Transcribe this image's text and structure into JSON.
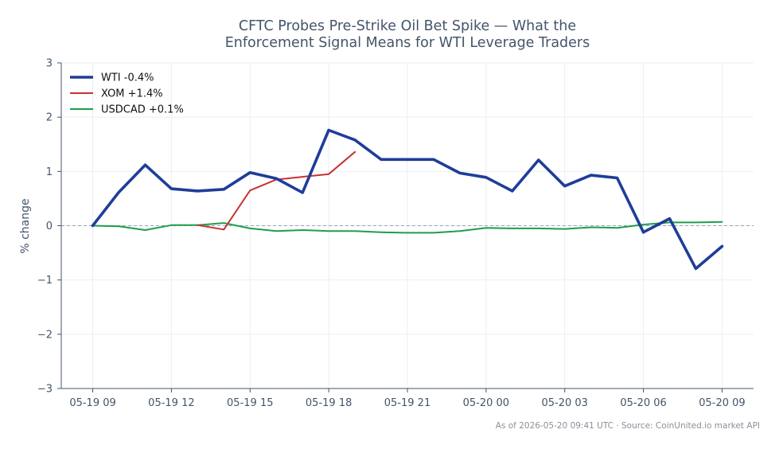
{
  "chart_data": {
    "type": "line",
    "title_lines": [
      "CFTC Probes Pre-Strike Oil Bet Spike — What the",
      "Enforcement Signal Means for WTI Leverage Traders"
    ],
    "ylabel": "% change",
    "xlabel": "",
    "ylim": [
      -3,
      3
    ],
    "y_ticks": [
      -3,
      -2,
      -1,
      0,
      1,
      2,
      3
    ],
    "y_tick_labels": [
      "−3",
      "−2",
      "−1",
      "0",
      "1",
      "2",
      "3"
    ],
    "x_range": [
      -1.2,
      25.2
    ],
    "x_ticks": [
      0,
      3,
      6,
      9,
      12,
      15,
      18,
      21,
      24
    ],
    "x_tick_labels": [
      "05-19 09",
      "05-19 12",
      "05-19 15",
      "05-19 18",
      "05-19 21",
      "05-20 00",
      "05-20 03",
      "05-20 06",
      "05-20 09"
    ],
    "grid": true,
    "zero_line": true,
    "legend_position": "top-left",
    "series": [
      {
        "name": "WTI -0.4%",
        "color": "#1f3d99",
        "x": [
          0,
          1,
          2,
          3,
          4,
          5,
          6,
          7,
          8,
          9,
          10,
          11,
          12,
          13,
          14,
          15,
          16,
          17,
          18,
          19,
          20,
          21,
          22,
          23,
          24
        ],
        "values": [
          0.0,
          0.62,
          1.12,
          0.68,
          0.64,
          0.67,
          0.98,
          0.87,
          0.61,
          1.76,
          1.58,
          1.22,
          1.22,
          1.22,
          0.97,
          0.89,
          0.64,
          1.21,
          0.73,
          0.93,
          0.88,
          -0.12,
          0.13,
          -0.79,
          -0.38
        ]
      },
      {
        "name": "XOM +1.4%",
        "color": "#c83232",
        "x": [
          4,
          5,
          6,
          7,
          8,
          9,
          10
        ],
        "values": [
          0.01,
          -0.07,
          0.65,
          0.85,
          0.9,
          0.95,
          1.36
        ]
      },
      {
        "name": "USDCAD +0.1%",
        "color": "#1f9e4b",
        "x": [
          0,
          1,
          2,
          3,
          4,
          5,
          6,
          7,
          8,
          9,
          10,
          11,
          12,
          13,
          14,
          15,
          16,
          17,
          18,
          19,
          20,
          21,
          22,
          23,
          24
        ],
        "values": [
          0.0,
          -0.01,
          -0.08,
          0.01,
          0.01,
          0.05,
          -0.05,
          -0.1,
          -0.08,
          -0.1,
          -0.1,
          -0.12,
          -0.13,
          -0.13,
          -0.1,
          -0.04,
          -0.05,
          -0.05,
          -0.06,
          -0.03,
          -0.04,
          0.02,
          0.06,
          0.06,
          0.07
        ]
      }
    ]
  },
  "footer": "As of 2026-05-20 09:41 UTC · Source: CoinUnited.io market API"
}
